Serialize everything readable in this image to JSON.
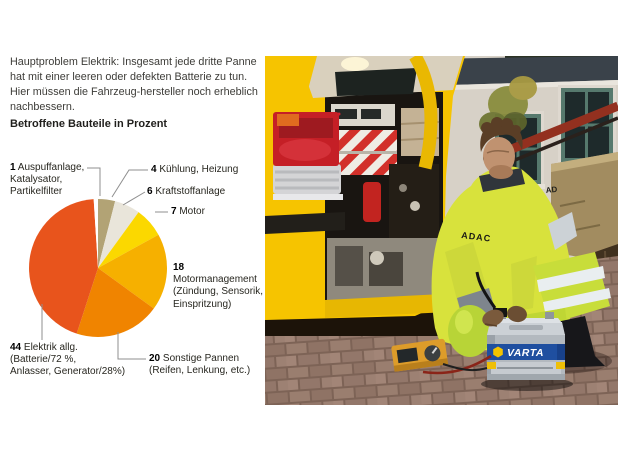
{
  "page": {
    "background": "#ffffff"
  },
  "intro": {
    "paragraph": "Hauptproblem Elektrik: Insgesamt jede dritte Panne hat mit einer leeren oder defekten Batterie zu tun. Hier müssen die Fahrzeug-hersteller noch erheblich nachbessern.",
    "subtitle": "Betroffene Bauteile in Prozent"
  },
  "chart_data": {
    "type": "pie",
    "title": "Betroffene Bauteile in Prozent",
    "units": "percent",
    "start_angle_deg": 0,
    "direction": "clockwise",
    "slices": [
      {
        "label": "Kühlung, Heizung",
        "value": 4,
        "color": "#b2a375"
      },
      {
        "label": "Kraftstoffanlage",
        "value": 6,
        "color": "#e9e5da"
      },
      {
        "label": "Motor",
        "value": 7,
        "color": "#fbd800"
      },
      {
        "label": "Motormanagement (Zündung, Sensorik, Einspritzung)",
        "value": 18,
        "color": "#f6b000"
      },
      {
        "label": "Sonstige Pannen (Reifen, Lenkung, etc.)",
        "value": 20,
        "color": "#f08400"
      },
      {
        "label": "Elektrik allg. (Batterie/72 %, Anlasser, Generator/28%)",
        "value": 44,
        "color": "#e8541c"
      },
      {
        "label": "Auspuffanlage, Katalysator, Partikelfilter",
        "value": 1,
        "color": "#ffffff"
      }
    ]
  },
  "callouts": {
    "c1": {
      "num": "1",
      "text": "Auspuffanlage,\nKatalysator,\nPartikelfilter"
    },
    "c4": {
      "num": "4",
      "text": "Kühlung, Heizung"
    },
    "c6": {
      "num": "6",
      "text": "Kraftstoffanlage"
    },
    "c7": {
      "num": "7",
      "text": "Motor"
    },
    "c18": {
      "num": "18",
      "text": "\nMotormanagement\n(Zündung, Sensorik,\nEinspritzung)"
    },
    "c44": {
      "num": "44",
      "text": "Elektrik allg.\n(Batterie/72 %,\nAnlasser, Generator/28%)"
    },
    "c20": {
      "num": "20",
      "text": "Sonstige Pannen\n(Reifen, Lenkung, etc.)"
    }
  },
  "photo": {
    "jacket_brand": "ADAC",
    "jacket_shoulder": "AD",
    "battery_brand": "VARTA"
  }
}
